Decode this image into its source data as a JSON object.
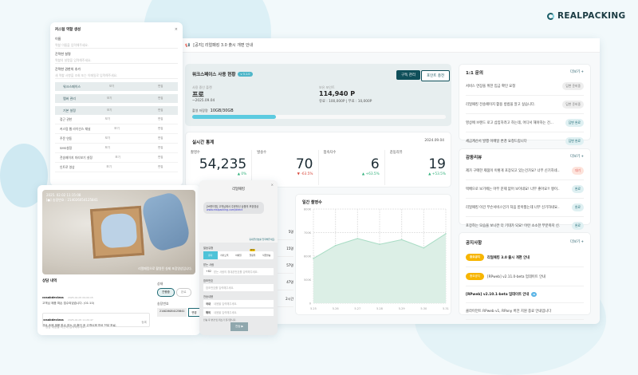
{
  "brand": {
    "logo": "REALPACKING",
    "accent": "#0f4f5a",
    "chart_fill": "#dcefe6",
    "chart_line": "#a8dcc4"
  },
  "notice_bar": {
    "icon": "megaphone-icon",
    "text": "[공지] 리얼패킹 3.0 출시 개편 안내"
  },
  "workspace": {
    "title": "워크스페이스 사용 현황",
    "version": "v 3.1.0",
    "manage_btn": "구독 관리",
    "charge_btn": "포인트 충전",
    "plan_label": "사용 중인 플랜",
    "plan": "프로",
    "plan_until": "~2025.09.04",
    "points_label": "보유 포인트",
    "points": "114,940 P",
    "points_detail": "유료 : 100,000P | 무료 : 10,000P",
    "storage_label": "촬영 저장량",
    "storage": "10GB/30GB",
    "storage_percent": 33
  },
  "stats": {
    "title": "실시간 통계",
    "date": "2024.09.04",
    "items": [
      {
        "label": "촬영수",
        "value": "54,235",
        "change": "▲ 0%",
        "dir": "up"
      },
      {
        "label": "발송수",
        "value": "70",
        "change": "▼ -63.5%",
        "dir": "down"
      },
      {
        "label": "접속자수",
        "value": "6",
        "change": "▲ +63.5%",
        "dir": "up"
      },
      {
        "label": "감동리뷰",
        "value": "19",
        "change": "▲ +53.5%",
        "dir": "up"
      }
    ]
  },
  "chart_data": {
    "type": "area",
    "title": "일간 촬영수",
    "x": [
      "5.25",
      "5.26",
      "5.27",
      "5.28",
      "5.29",
      "5.30",
      "5.31"
    ],
    "values": [
      590000,
      645000,
      675000,
      650000,
      670000,
      635000,
      695000
    ],
    "yticks": [
      "0",
      "500K",
      "600K",
      "700K",
      "800K"
    ],
    "ylim": [
      0,
      800000
    ],
    "grid": true
  },
  "side_table": [
    "5명",
    "15명",
    "57명",
    "47명",
    "2시간"
  ],
  "inquiry": {
    "title": "1:1 문의",
    "more": "더보기 +",
    "items": [
      {
        "text": "서비스 연장을 위한 입금 확인 요청",
        "status": "답변 준비중",
        "type": ""
      },
      {
        "text": "리얼패킹 전송페이지 활용 방법을 알고 싶습니다.",
        "status": "답변 준비중",
        "type": ""
      },
      {
        "text": "영상에 브랜드 로고 삽입하려고 하는데, 어디서 해야하는 건...",
        "status": "답변 완료",
        "type": "done"
      },
      {
        "text": "세금계산서 발행 이메일 변경 요청드립니다",
        "status": "답변 완료",
        "type": "done"
      }
    ]
  },
  "reviews": {
    "title": "감동리뷰",
    "more": "더보기 +",
    "items": [
      {
        "text": "제가 구매한 제품이 이렇게 포장되고 있는건가요? 너무 신기하네...",
        "status": "대기",
        "type": "wait"
      },
      {
        "text": "택배으로 보기에는 아무 문제 없어 보이네요! 너무 좋아요!! 짱이...",
        "status": "완료",
        "type": "done"
      },
      {
        "text": "리얼패킹 이건 무슨서비스인가 처음 받아봤는데 너무 신기하네요...",
        "status": "완료",
        "type": "done"
      },
      {
        "text": "포장하는 모습을 보니깐 더 기대가 되요! 이런 소소한 부분까지 신...",
        "status": "완료",
        "type": "done"
      }
    ]
  },
  "notices": {
    "title": "공지사항",
    "more": "더보기 +",
    "items": [
      {
        "badge": "중요공지",
        "text": "리얼패킹 3.0 출시 개편 안내",
        "bold": true
      },
      {
        "badge": "중요공지",
        "text": "[RPweb] v2.11.0-beta 업데이트 안내",
        "bold": false
      },
      {
        "badge": "",
        "text": "[RPweb] v2.10.1-beta 업데이트 안내",
        "bold": true,
        "new": "N"
      },
      {
        "badge": "",
        "text": "클라이언트 RPweb v1, RPany 버전 지원 종료 안내입니다",
        "bold": false
      }
    ]
  },
  "role_form": {
    "title": "커스텀 역할 생성",
    "close": "×",
    "name_label": "이름",
    "name_ph": "역할 이름을 입력해주세요.",
    "desc_label": "간략한 설명",
    "desc_ph": "역할의 설명을 입력해주세요.",
    "member_label": "간략한 권한의 추가",
    "member_ph": "새 역할 사항을 조회 또는 이메일로 입력해주세요.",
    "view": "보기",
    "edit": "편집",
    "sections": [
      "워크스페이스",
      "멤버 관리",
      "기본 설정"
    ],
    "rows": [
      "접근 권한",
      "커스텀 웹 라이선스 채널",
      "주문 연동",
      "SMS설정",
      "전송페이지 미리보기 설정",
      "인트로 영상"
    ]
  },
  "video": {
    "timestamp": "2025. 02.02 11:15:08",
    "invoice_overlay": "[●] 송장번호 : 214026054125841",
    "caption": "리얼패킹으로 촬영된 실제 포장영상입니다.",
    "history_title": "상담 내역",
    "messages": [
      {
        "user": "cosabdeclass",
        "time": "2025-02-05 09:00:15",
        "text": "고객님 제품 파손 접수되었습니다. (01:10)"
      },
      {
        "user": "cosabdeclass",
        "time": "2025-02-05 11:20:47",
        "text": "영상 속에 제품 파손 없는 것 확인 후 고객님께 영상 전달 완료."
      },
      {
        "user": "cosabdeclass",
        "time": "2025-02-06 11:55:15",
        "text": "…"
      }
    ],
    "input_ph": "상담 내용을 이곳에 입력해주세요.",
    "submit": "등록",
    "status_label": "상태",
    "status_on": "진행중",
    "status_off": "완료",
    "invoice_label": "송장번호",
    "invoice": "214026054125841",
    "change_btn": "변경"
  },
  "send": {
    "title": "리얼패킹",
    "close": "×",
    "bubble": "[브랜드명] 고객님께서 주문하신 상품의 포장영상",
    "link": "www.realpacking.com/direct",
    "hint": "휴대폰번호를 입력해주세요.",
    "type_label": "발송유형",
    "tabs": [
      "문자",
      "카카오톡",
      "이메일",
      "알림톡",
      "직접발송"
    ],
    "new": "NEW",
    "to_label": "받는 사람",
    "code": "+82",
    "to_ph": "받는 사람의 휴대폰번호를 입력해주세요.",
    "ref_label": "참조번호",
    "ref_ph": "참조번호를 입력해주세요.",
    "content_label": "전송내용",
    "domestic": "국내",
    "overseas": "해외",
    "content_ph": "내용을 입력해주세요.",
    "warning": "전송 후 변경 및 취소가 불가합니다.",
    "send_btn": "전송 ▶"
  }
}
